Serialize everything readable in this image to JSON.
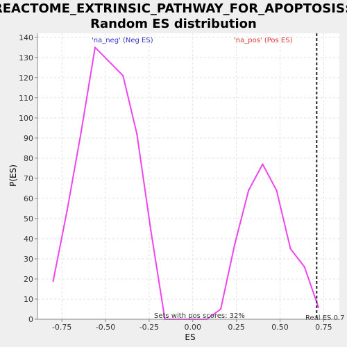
{
  "chart_data": {
    "type": "line",
    "title_line1": "REACTOME_EXTRINSIC_PATHWAY_FOR_APOPTOSIS:",
    "title_line2": "Random ES distribution",
    "xlabel": "ES",
    "ylabel": "P(ES)",
    "xlim": [
      -0.89,
      0.84
    ],
    "ylim": [
      0,
      142
    ],
    "x_ticks": [
      -0.75,
      -0.5,
      -0.25,
      0.0,
      0.25,
      0.5,
      0.75
    ],
    "x_tick_labels": [
      "-0.75",
      "-0.50",
      "-0.25",
      "0.00",
      "0.25",
      "0.50",
      "0.75"
    ],
    "y_ticks": [
      0,
      10,
      20,
      30,
      40,
      50,
      60,
      70,
      80,
      90,
      100,
      110,
      120,
      130,
      140
    ],
    "grid": true,
    "background": "#ffffff",
    "line_color": "#ee44ee",
    "series": [
      {
        "x": [
          -0.8,
          -0.72,
          -0.64,
          -0.56,
          -0.4,
          -0.32,
          -0.24,
          -0.16,
          -0.08,
          0.0,
          0.08,
          0.16,
          0.24,
          0.32,
          0.4,
          0.48,
          0.56,
          0.64,
          0.72
        ],
        "y": [
          19,
          54,
          93,
          135,
          121,
          92,
          44,
          0,
          0,
          0,
          0,
          5,
          37,
          64,
          77,
          64,
          35,
          26,
          6
        ]
      }
    ],
    "annotations": {
      "neg_label": "'na_neg' (Neg ES)",
      "neg_color": "#3333cc",
      "pos_label": "'na_pos' (Pos ES)",
      "pos_color": "#dd3333",
      "pos_scores": "Sets with pos scores: 32%",
      "real_es_label": "Real ES 0.7",
      "real_es_value": 0.71
    }
  }
}
